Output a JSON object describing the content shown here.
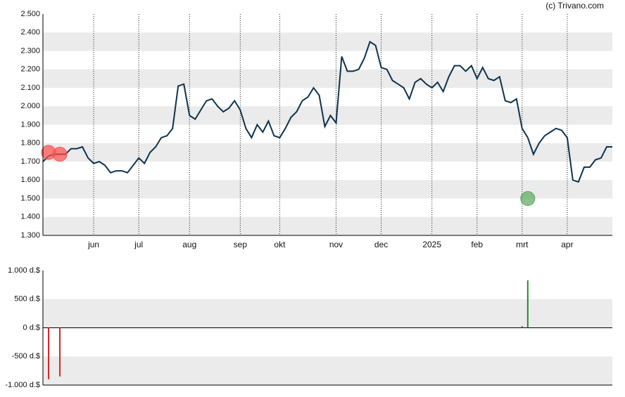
{
  "watermark": "(c) Trivano.com",
  "chart_data": [
    {
      "type": "line",
      "categories": [
        null,
        null,
        null,
        null,
        null,
        null,
        null,
        null,
        null,
        "jun",
        null,
        null,
        null,
        null,
        null,
        null,
        null,
        "jul",
        null,
        null,
        null,
        null,
        null,
        null,
        null,
        null,
        "aug",
        null,
        null,
        null,
        null,
        null,
        null,
        null,
        null,
        "sep",
        null,
        null,
        null,
        null,
        null,
        null,
        "okt",
        null,
        null,
        null,
        null,
        null,
        null,
        null,
        null,
        null,
        "nov",
        null,
        null,
        null,
        null,
        null,
        null,
        null,
        "dec",
        null,
        null,
        null,
        null,
        null,
        null,
        null,
        null,
        "2025",
        null,
        null,
        null,
        null,
        null,
        null,
        null,
        "feb",
        null,
        null,
        null,
        null,
        null,
        null,
        null,
        "mrt",
        null,
        null,
        null,
        null,
        null,
        null,
        null,
        "apr",
        null,
        null,
        null,
        null,
        null,
        null,
        null,
        null
      ],
      "series": [
        {
          "color": "#0d3350",
          "values": [
            1.7,
            1.73,
            1.74,
            1.74,
            1.74,
            1.77,
            1.77,
            1.78,
            1.72,
            1.69,
            1.7,
            1.68,
            1.64,
            1.65,
            1.65,
            1.64,
            1.68,
            1.72,
            1.69,
            1.75,
            1.78,
            1.83,
            1.84,
            1.88,
            2.11,
            2.12,
            1.95,
            1.93,
            1.98,
            2.03,
            2.04,
            2.0,
            1.97,
            1.99,
            2.03,
            1.98,
            1.88,
            1.83,
            1.9,
            1.86,
            1.92,
            1.84,
            1.83,
            1.88,
            1.94,
            1.97,
            2.03,
            2.05,
            2.1,
            2.06,
            1.89,
            1.95,
            1.91,
            2.27,
            2.19,
            2.19,
            2.2,
            2.26,
            2.35,
            2.33,
            2.21,
            2.2,
            2.14,
            2.12,
            2.1,
            2.04,
            2.13,
            2.15,
            2.12,
            2.1,
            2.13,
            2.08,
            2.16,
            2.22,
            2.22,
            2.19,
            2.22,
            2.15,
            2.21,
            2.15,
            2.14,
            2.16,
            2.03,
            2.02,
            2.04,
            1.88,
            1.83,
            1.74,
            1.8,
            1.84,
            1.86,
            1.88,
            1.87,
            1.83,
            1.6,
            1.59,
            1.67,
            1.67,
            1.71,
            1.72,
            1.78,
            1.78
          ]
        },
        {
          "type": "scatter",
          "color": "#ff4d4d",
          "values": [
            null,
            1.75,
            null,
            1.74,
            null,
            null,
            null,
            null,
            null,
            null,
            null,
            null,
            null,
            null,
            null,
            null,
            null,
            null,
            null,
            null,
            null,
            null,
            null,
            null,
            null,
            null,
            null,
            null,
            null,
            null,
            null,
            null,
            null,
            null,
            null,
            null,
            null,
            null,
            null,
            null,
            null,
            null,
            null,
            null,
            null,
            null,
            null,
            null,
            null,
            null,
            null,
            null,
            null,
            null,
            null,
            null,
            null,
            null,
            null,
            null,
            null,
            null,
            null,
            null,
            null,
            null,
            null,
            null,
            null,
            null,
            null,
            null,
            null,
            null,
            null,
            null,
            null,
            null,
            null,
            null,
            null,
            null,
            null,
            null,
            null,
            null,
            null,
            null,
            null,
            null,
            null,
            null,
            null,
            null,
            null,
            null,
            null,
            null,
            null,
            null,
            null,
            null
          ]
        },
        {
          "type": "scatter",
          "color": "#5aa85a",
          "values": [
            null,
            null,
            null,
            null,
            null,
            null,
            null,
            null,
            null,
            null,
            null,
            null,
            null,
            null,
            null,
            null,
            null,
            null,
            null,
            null,
            null,
            null,
            null,
            null,
            null,
            null,
            null,
            null,
            null,
            null,
            null,
            null,
            null,
            null,
            null,
            null,
            null,
            null,
            null,
            null,
            null,
            null,
            null,
            null,
            null,
            null,
            null,
            null,
            null,
            null,
            null,
            null,
            null,
            null,
            null,
            null,
            null,
            null,
            null,
            null,
            null,
            null,
            null,
            null,
            null,
            null,
            null,
            null,
            null,
            null,
            null,
            null,
            null,
            null,
            null,
            null,
            null,
            null,
            null,
            null,
            null,
            null,
            null,
            null,
            null,
            null,
            1.5,
            null,
            null,
            null,
            null,
            null,
            null,
            null,
            null,
            null,
            null,
            null,
            null,
            null,
            null,
            null
          ]
        }
      ],
      "ylim": [
        1.3,
        2.5
      ],
      "yticks": [
        {
          "value": 1.3,
          "label": "1.300"
        },
        {
          "value": 1.4,
          "label": "1.400"
        },
        {
          "value": 1.5,
          "label": "1.500"
        },
        {
          "value": 1.6,
          "label": "1.600"
        },
        {
          "value": 1.7,
          "label": "1.700"
        },
        {
          "value": 1.8,
          "label": "1.800"
        },
        {
          "value": 1.9,
          "label": "1.900"
        },
        {
          "value": 2.0,
          "label": "2.000"
        },
        {
          "value": 2.1,
          "label": "2.100"
        },
        {
          "value": 2.2,
          "label": "2.200"
        },
        {
          "value": 2.3,
          "label": "2.300"
        },
        {
          "value": 2.4,
          "label": "2.400"
        },
        {
          "value": 2.5,
          "label": "2.500"
        }
      ],
      "grid": "bands"
    },
    {
      "type": "bar",
      "values": [
        null,
        -900,
        null,
        -850,
        null,
        null,
        null,
        null,
        null,
        null,
        null,
        null,
        null,
        null,
        null,
        null,
        null,
        null,
        null,
        null,
        null,
        null,
        null,
        null,
        null,
        null,
        null,
        null,
        null,
        null,
        null,
        null,
        null,
        null,
        null,
        null,
        null,
        null,
        null,
        null,
        null,
        null,
        null,
        null,
        null,
        null,
        null,
        null,
        null,
        null,
        null,
        null,
        null,
        null,
        null,
        null,
        null,
        null,
        null,
        null,
        null,
        null,
        null,
        null,
        null,
        null,
        null,
        null,
        null,
        null,
        null,
        null,
        null,
        null,
        null,
        null,
        null,
        null,
        null,
        null,
        null,
        null,
        null,
        null,
        null,
        30,
        830,
        null,
        null,
        null,
        null,
        null,
        null,
        null,
        null,
        null,
        null,
        null,
        null,
        null,
        null,
        null
      ],
      "color_positive": "#2a8a2a",
      "color_negative": "#d62728",
      "ylim": [
        -1000,
        1000
      ],
      "yticks": [
        {
          "value": -1000,
          "label": "-1.000 d.$"
        },
        {
          "value": -500,
          "label": "-500 d.$"
        },
        {
          "value": 0,
          "label": "0 d.$"
        },
        {
          "value": 500,
          "label": "500 d.$"
        },
        {
          "value": 1000,
          "label": "1.000 d.$"
        }
      ],
      "grid": "bands"
    }
  ]
}
